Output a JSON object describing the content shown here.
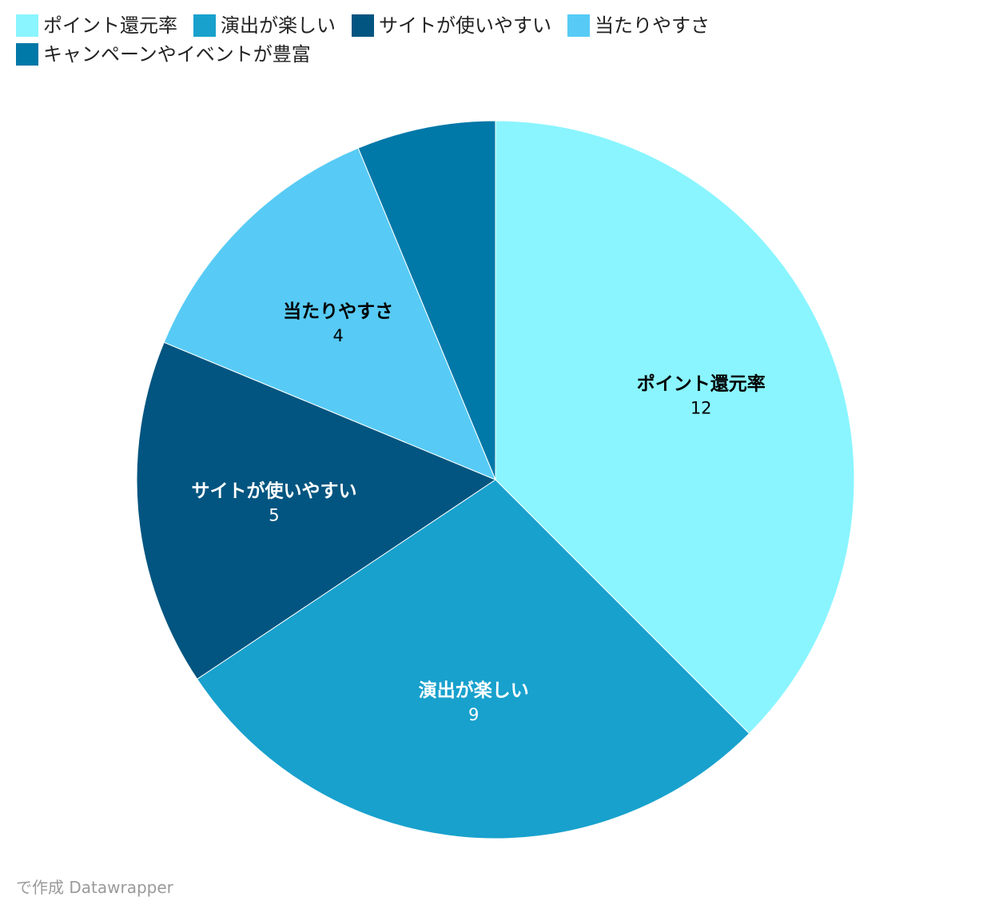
{
  "chart_data": {
    "type": "pie",
    "categories": [
      "ポイント還元率",
      "演出が楽しい",
      "サイトが使いやすい",
      "当たりやすさ",
      "キャンペーンやイベントが豊富"
    ],
    "values": [
      12,
      9,
      5,
      4,
      2
    ],
    "data_labels": [
      "12",
      "9",
      "5",
      "4",
      ""
    ],
    "colors": [
      "#8af5ff",
      "#18a1cd",
      "#015580",
      "#57cbf5",
      "#0078a8"
    ],
    "label_text_colors": [
      "#000000",
      "#ffffff",
      "#ffffff",
      "#000000",
      "#ffffff"
    ],
    "legend_position": "top-left"
  },
  "footer": {
    "credit": "で作成 Datawrapper"
  }
}
